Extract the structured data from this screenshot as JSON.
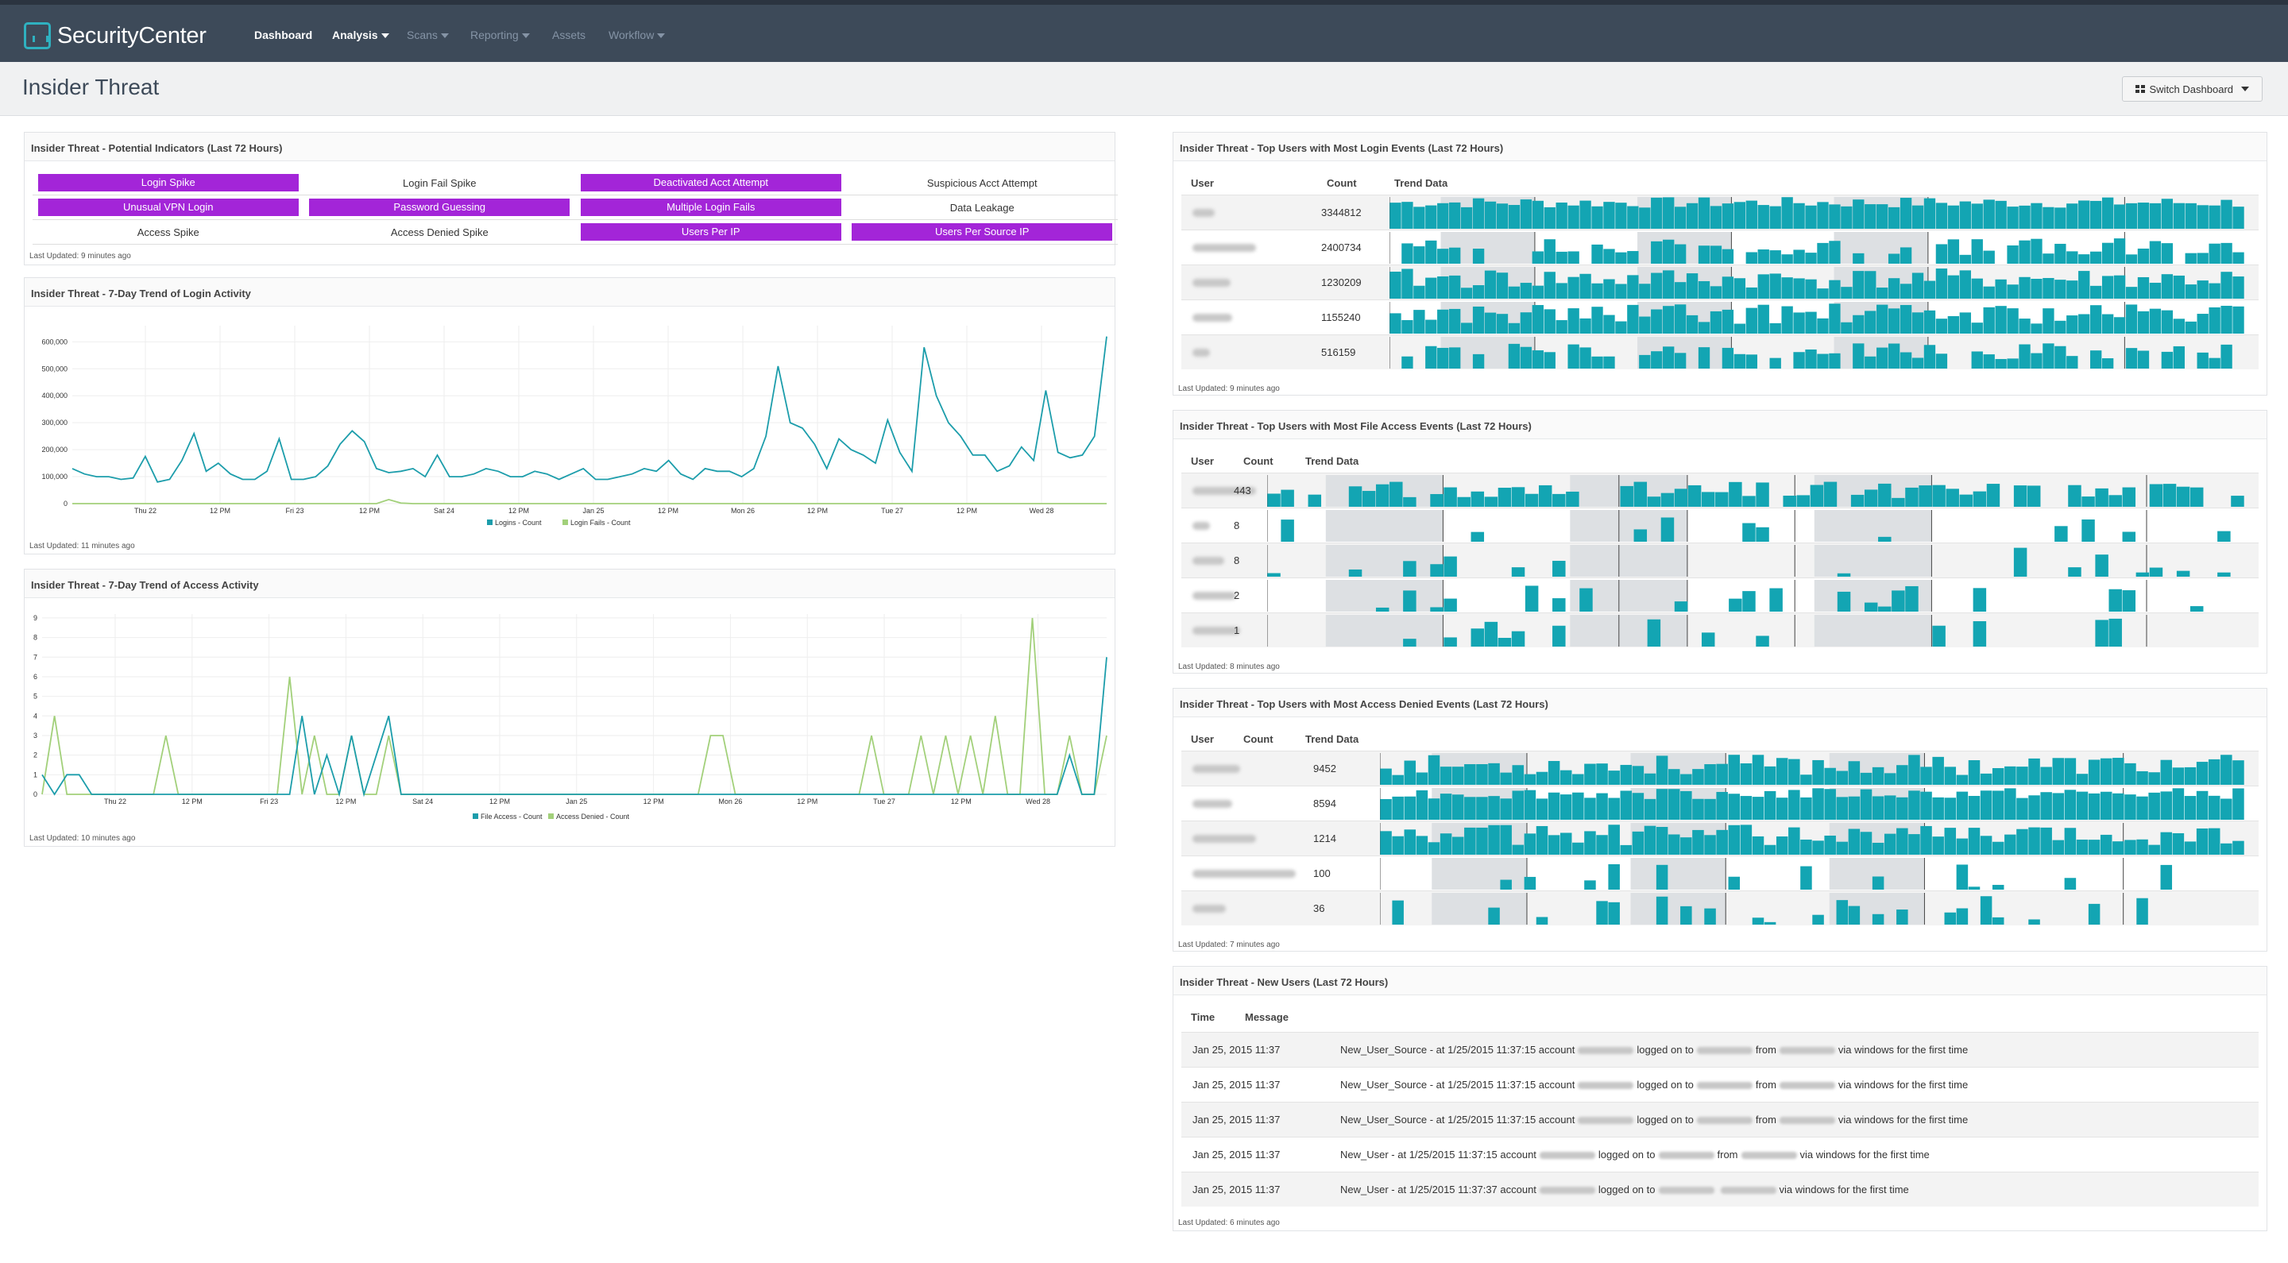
{
  "nav": {
    "logo": "SecurityCenter",
    "items": [
      {
        "label": "Dashboard",
        "dim": false
      },
      {
        "label": "Analysis",
        "dim": false,
        "caret": true
      },
      {
        "label": "Scans",
        "dim": true,
        "caret": true
      },
      {
        "label": "Reporting",
        "dim": true,
        "caret": true
      },
      {
        "label": "Assets",
        "dim": true
      },
      {
        "label": "Workflow",
        "dim": true,
        "caret": true
      }
    ]
  },
  "header": {
    "title": "Insider Threat",
    "switch_label": "Switch Dashboard"
  },
  "indicators": {
    "title": "Insider Threat - Potential Indicators (Last 72 Hours)",
    "updated": "Last Updated: 9 minutes ago",
    "items": [
      {
        "label": "Login Spike",
        "on": true
      },
      {
        "label": "Login Fail Spike",
        "on": false
      },
      {
        "label": "Deactivated Acct Attempt",
        "on": true
      },
      {
        "label": "Suspicious Acct Attempt",
        "on": false
      },
      {
        "label": "Unusual VPN Login",
        "on": true
      },
      {
        "label": "Password Guessing",
        "on": true
      },
      {
        "label": "Multiple Login Fails",
        "on": true
      },
      {
        "label": "Data Leakage",
        "on": false
      },
      {
        "label": "Access Spike",
        "on": false
      },
      {
        "label": "Access Denied Spike",
        "on": false
      },
      {
        "label": "Users Per IP",
        "on": true
      },
      {
        "label": "Users Per Source IP",
        "on": true
      }
    ],
    "highlight_color": "#a325d8"
  },
  "login_chart": {
    "title": "Insider Threat - 7-Day Trend of Login Activity",
    "updated": "Last Updated: 11 minutes ago"
  },
  "access_chart": {
    "title": "Insider Threat - 7-Day Trend of Access Activity",
    "updated": "Last Updated: 10 minutes ago"
  },
  "chart_data": [
    {
      "type": "line",
      "x_ticks": [
        "Thu 22",
        "12 PM",
        "Fri 23",
        "12 PM",
        "Sat 24",
        "12 PM",
        "Jan 25",
        "12 PM",
        "Mon 26",
        "12 PM",
        "Tue 27",
        "12 PM",
        "Wed 28"
      ],
      "y_ticks": [
        "0",
        "100,000",
        "200,000",
        "300,000",
        "400,000",
        "500,000",
        "600,000"
      ],
      "ylim": [
        0,
        660000
      ],
      "grid": true,
      "legend": "bottom-center",
      "series": [
        {
          "name": "Logins - Count",
          "color": "#1c9dab",
          "values": [
            130000,
            110000,
            100000,
            100000,
            90000,
            95000,
            175000,
            80000,
            90000,
            160000,
            260000,
            120000,
            150000,
            110000,
            90000,
            90000,
            120000,
            240000,
            90000,
            90000,
            100000,
            140000,
            220000,
            270000,
            230000,
            130000,
            115000,
            120000,
            130000,
            100000,
            180000,
            100000,
            100000,
            110000,
            130000,
            120000,
            100000,
            100000,
            120000,
            110000,
            90000,
            110000,
            130000,
            90000,
            90000,
            100000,
            110000,
            130000,
            120000,
            160000,
            110000,
            90000,
            130000,
            120000,
            120000,
            100000,
            130000,
            250000,
            510000,
            300000,
            280000,
            220000,
            130000,
            240000,
            200000,
            180000,
            150000,
            310000,
            190000,
            120000,
            580000,
            400000,
            300000,
            250000,
            180000,
            180000,
            120000,
            140000,
            210000,
            160000,
            420000,
            190000,
            170000,
            180000,
            250000,
            620000
          ]
        },
        {
          "name": "Login Fails - Count",
          "color": "#a2d07a",
          "values": [
            0,
            0,
            0,
            0,
            0,
            0,
            0,
            0,
            0,
            0,
            0,
            0,
            0,
            0,
            0,
            0,
            0,
            0,
            0,
            0,
            0,
            0,
            0,
            0,
            0,
            0,
            15000,
            2000,
            0,
            0,
            0,
            0,
            0,
            0,
            0,
            0,
            0,
            0,
            0,
            0,
            0,
            0,
            0,
            0,
            0,
            0,
            0,
            0,
            0,
            0,
            0,
            0,
            0,
            0,
            0,
            0,
            0,
            0,
            0,
            0,
            0,
            0,
            0,
            0,
            0,
            0,
            0,
            0,
            0,
            0,
            0,
            0,
            0,
            0,
            0,
            0,
            0,
            0,
            0,
            0,
            0,
            0,
            0,
            0,
            0,
            0
          ]
        }
      ]
    },
    {
      "type": "line",
      "x_ticks": [
        "Thu 22",
        "12 PM",
        "Fri 23",
        "12 PM",
        "Sat 24",
        "12 PM",
        "Jan 25",
        "12 PM",
        "Mon 26",
        "12 PM",
        "Tue 27",
        "12 PM",
        "Wed 28"
      ],
      "y_ticks": [
        "0",
        "1",
        "2",
        "3",
        "4",
        "5",
        "6",
        "7",
        "8",
        "9"
      ],
      "ylim": [
        0,
        9.2
      ],
      "grid": true,
      "legend": "bottom-center",
      "series": [
        {
          "name": "File Access - Count",
          "color": "#1c9dab",
          "values": [
            1,
            0,
            1,
            1,
            0,
            0,
            0,
            0,
            0,
            0,
            0,
            0,
            0,
            0,
            0,
            0,
            0,
            0,
            0,
            0,
            0,
            4,
            0,
            2,
            0,
            3,
            0,
            2,
            4,
            0,
            0,
            0,
            0,
            0,
            0,
            0,
            0,
            0,
            0,
            0,
            0,
            0,
            0,
            0,
            0,
            0,
            0,
            0,
            0,
            0,
            0,
            0,
            0,
            0,
            0,
            0,
            0,
            0,
            0,
            0,
            0,
            0,
            0,
            0,
            0,
            0,
            0,
            0,
            0,
            0,
            0,
            0,
            0,
            0,
            0,
            0,
            0,
            0,
            0,
            0,
            0,
            0,
            0,
            2,
            0,
            0,
            7
          ]
        },
        {
          "name": "Access Denied - Count",
          "color": "#a2d07a",
          "values": [
            0,
            4,
            0,
            0,
            0,
            0,
            0,
            0,
            0,
            0,
            3,
            0,
            0,
            0,
            0,
            0,
            0,
            0,
            0,
            0,
            6,
            0,
            3,
            0,
            0,
            3,
            0,
            0,
            3,
            0,
            0,
            0,
            0,
            0,
            0,
            0,
            0,
            0,
            0,
            0,
            0,
            0,
            0,
            0,
            0,
            0,
            0,
            0,
            0,
            0,
            0,
            0,
            0,
            0,
            3,
            3,
            0,
            0,
            0,
            0,
            0,
            0,
            0,
            0,
            0,
            0,
            0,
            3,
            0,
            0,
            0,
            3,
            0,
            3,
            0,
            3,
            0,
            4,
            0,
            0,
            9,
            0,
            0,
            3,
            0,
            0,
            3
          ]
        }
      ]
    }
  ],
  "login_users": {
    "title": "Insider Threat - Top Users with Most Login Events (Last 72 Hours)",
    "updated": "Last Updated: 9 minutes ago",
    "columns": [
      "User",
      "Count",
      "Trend Data"
    ],
    "counts": [
      "3344812",
      "2400734",
      "1230209",
      "1155240",
      "516159"
    ]
  },
  "file_users": {
    "title": "Insider Threat - Top Users with Most File Access Events (Last 72 Hours)",
    "updated": "Last Updated: 8 minutes ago",
    "columns": [
      "User",
      "Count",
      "Trend Data"
    ],
    "counts": [
      "443",
      "8",
      "8",
      "2",
      "1"
    ]
  },
  "denied_users": {
    "title": "Insider Threat - Top Users with Most Access Denied Events (Last 72 Hours)",
    "updated": "Last Updated: 7 minutes ago",
    "columns": [
      "User",
      "Count",
      "Trend Data"
    ],
    "counts": [
      "9452",
      "8594",
      "1214",
      "100",
      "36"
    ]
  },
  "new_users": {
    "title": "Insider Threat - New Users (Last 72 Hours)",
    "updated": "Last Updated: 6 minutes ago",
    "columns": [
      "Time",
      "Message"
    ],
    "rows": [
      {
        "time": "Jan 25, 2015 11:37",
        "a": "New_User_Source - at 1/25/2015 11:37:15 account",
        "b": "logged on to",
        "c": "from",
        "d": "via windows for the first time"
      },
      {
        "time": "Jan 25, 2015 11:37",
        "a": "New_User_Source - at 1/25/2015 11:37:15 account",
        "b": "logged on to",
        "c": "from",
        "d": "via windows for the first time"
      },
      {
        "time": "Jan 25, 2015 11:37",
        "a": "New_User_Source - at 1/25/2015 11:37:15 account",
        "b": "logged on to",
        "c": "from",
        "d": "via windows for the first time"
      },
      {
        "time": "Jan 25, 2015 11:37",
        "a": "New_User - at 1/25/2015 11:37:15 account",
        "b": "logged on to",
        "c": "from",
        "d": "via windows for the first time"
      },
      {
        "time": "Jan 25, 2015 11:37",
        "a": "New_User - at 1/25/2015 11:37:37 account",
        "b": "logged on to",
        "c": "",
        "d": "via windows for the first time"
      }
    ]
  }
}
